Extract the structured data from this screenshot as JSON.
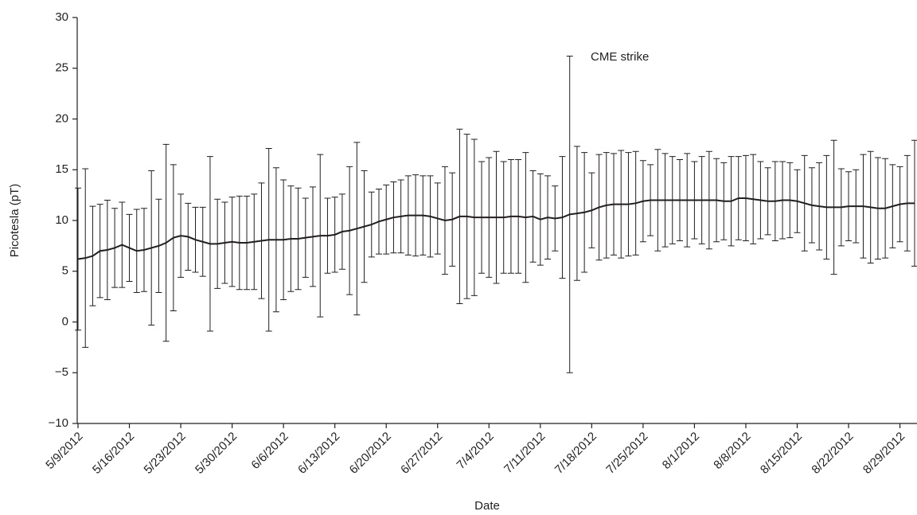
{
  "chart_data": {
    "type": "line",
    "x_label": "Date",
    "y_label": "Picotesla (pT)",
    "annotation": "CME strike",
    "x": [
      "5/9/2012",
      "5/10/2012",
      "5/11/2012",
      "5/12/2012",
      "5/13/2012",
      "5/14/2012",
      "5/15/2012",
      "5/16/2012",
      "5/17/2012",
      "5/18/2012",
      "5/19/2012",
      "5/20/2012",
      "5/21/2012",
      "5/22/2012",
      "5/23/2012",
      "5/24/2012",
      "5/25/2012",
      "5/26/2012",
      "5/27/2012",
      "5/28/2012",
      "5/29/2012",
      "5/30/2012",
      "5/31/2012",
      "6/1/2012",
      "6/2/2012",
      "6/3/2012",
      "6/4/2012",
      "6/5/2012",
      "6/6/2012",
      "6/7/2012",
      "6/8/2012",
      "6/9/2012",
      "6/10/2012",
      "6/11/2012",
      "6/12/2012",
      "6/13/2012",
      "6/14/2012",
      "6/15/2012",
      "6/16/2012",
      "6/17/2012",
      "6/18/2012",
      "6/19/2012",
      "6/20/2012",
      "6/21/2012",
      "6/22/2012",
      "6/23/2012",
      "6/24/2012",
      "6/25/2012",
      "6/26/2012",
      "6/27/2012",
      "6/28/2012",
      "6/29/2012",
      "6/30/2012",
      "7/1/2012",
      "7/2/2012",
      "7/3/2012",
      "7/4/2012",
      "7/5/2012",
      "7/6/2012",
      "7/7/2012",
      "7/8/2012",
      "7/9/2012",
      "7/10/2012",
      "7/11/2012",
      "7/12/2012",
      "7/13/2012",
      "7/14/2012",
      "7/15/2012",
      "7/16/2012",
      "7/17/2012",
      "7/18/2012",
      "7/19/2012",
      "7/20/2012",
      "7/21/2012",
      "7/22/2012",
      "7/23/2012",
      "7/24/2012",
      "7/25/2012",
      "7/26/2012",
      "7/27/2012",
      "7/28/2012",
      "7/29/2012",
      "7/30/2012",
      "7/31/2012",
      "8/1/2012",
      "8/2/2012",
      "8/3/2012",
      "8/4/2012",
      "8/5/2012",
      "8/6/2012",
      "8/7/2012",
      "8/8/2012",
      "8/9/2012",
      "8/10/2012",
      "8/11/2012",
      "8/12/2012",
      "8/13/2012",
      "8/14/2012",
      "8/15/2012",
      "8/16/2012",
      "8/17/2012",
      "8/18/2012",
      "8/19/2012",
      "8/20/2012",
      "8/21/2012",
      "8/22/2012",
      "8/23/2012",
      "8/24/2012",
      "8/25/2012",
      "8/26/2012",
      "8/27/2012",
      "8/28/2012",
      "8/29/2012",
      "8/30/2012",
      "8/31/2012"
    ],
    "series": [
      {
        "color": "#231f20",
        "values": [
          6.2,
          6.3,
          6.5,
          7.0,
          7.1,
          7.3,
          7.6,
          7.3,
          7.0,
          7.1,
          7.3,
          7.5,
          7.8,
          8.3,
          8.5,
          8.4,
          8.1,
          7.9,
          7.7,
          7.7,
          7.8,
          7.9,
          7.8,
          7.8,
          7.9,
          8.0,
          8.1,
          8.1,
          8.1,
          8.2,
          8.2,
          8.3,
          8.4,
          8.5,
          8.5,
          8.6,
          8.9,
          9.0,
          9.2,
          9.4,
          9.6,
          9.9,
          10.1,
          10.3,
          10.4,
          10.5,
          10.5,
          10.5,
          10.4,
          10.2,
          10.0,
          10.1,
          10.4,
          10.4,
          10.3,
          10.3,
          10.3,
          10.3,
          10.3,
          10.4,
          10.4,
          10.3,
          10.4,
          10.1,
          10.3,
          10.2,
          10.3,
          10.6,
          10.7,
          10.8,
          11.0,
          11.3,
          11.5,
          11.6,
          11.6,
          11.6,
          11.7,
          11.9,
          12.0,
          12.0,
          12.0,
          12.0,
          12.0,
          12.0,
          12.0,
          12.0,
          12.0,
          12.0,
          11.9,
          11.9,
          12.2,
          12.2,
          12.1,
          12.0,
          11.9,
          11.9,
          12.0,
          12.0,
          11.9,
          11.7,
          11.5,
          11.4,
          11.3,
          11.3,
          11.3,
          11.4,
          11.4,
          11.4,
          11.3,
          11.2,
          11.2,
          11.4,
          11.6,
          11.7,
          11.7
        ],
        "errors": [
          7.0,
          8.8,
          4.9,
          4.6,
          4.9,
          3.9,
          4.2,
          3.3,
          4.1,
          4.1,
          7.6,
          4.6,
          9.7,
          7.2,
          4.1,
          3.3,
          3.2,
          3.4,
          8.6,
          4.4,
          4.0,
          4.4,
          4.6,
          4.6,
          4.7,
          5.7,
          9.0,
          7.1,
          5.9,
          5.2,
          5.0,
          3.9,
          4.9,
          8.0,
          3.7,
          3.7,
          3.7,
          6.3,
          8.5,
          5.5,
          3.2,
          3.2,
          3.4,
          3.5,
          3.6,
          3.9,
          4.0,
          3.9,
          4.0,
          3.5,
          5.3,
          4.6,
          8.6,
          8.1,
          7.7,
          5.5,
          5.9,
          6.5,
          5.5,
          5.6,
          5.6,
          6.4,
          4.5,
          4.5,
          4.1,
          3.2,
          6.0,
          15.6,
          6.6,
          5.9,
          3.7,
          5.2,
          5.2,
          5.0,
          5.3,
          5.1,
          5.1,
          4.0,
          3.5,
          5.0,
          4.6,
          4.3,
          4.0,
          4.6,
          3.8,
          4.3,
          4.8,
          4.1,
          3.8,
          4.4,
          4.1,
          4.2,
          4.4,
          3.8,
          3.3,
          3.9,
          3.8,
          3.7,
          3.1,
          4.7,
          3.7,
          4.3,
          5.1,
          6.6,
          3.8,
          3.4,
          3.6,
          5.1,
          5.5,
          5.0,
          4.9,
          4.1,
          3.7,
          4.7,
          6.2
        ]
      }
    ],
    "ylim": [
      -10,
      30
    ],
    "yticks": [
      {
        "value": -10,
        "label": "−10"
      },
      {
        "value": -5,
        "label": "−5"
      },
      0,
      5,
      10,
      15,
      20,
      25,
      30
    ],
    "xticks": [
      "5/9/2012",
      "5/16/2012",
      "5/23/2012",
      "5/30/2012",
      "6/6/2012",
      "6/13/2012",
      "6/20/2012",
      "6/27/2012",
      "7/4/2012",
      "7/11/2012",
      "7/18/2012",
      "7/25/2012",
      "8/1/2012",
      "8/8/2012",
      "8/15/2012",
      "8/22/2012",
      "8/29/2012"
    ]
  }
}
